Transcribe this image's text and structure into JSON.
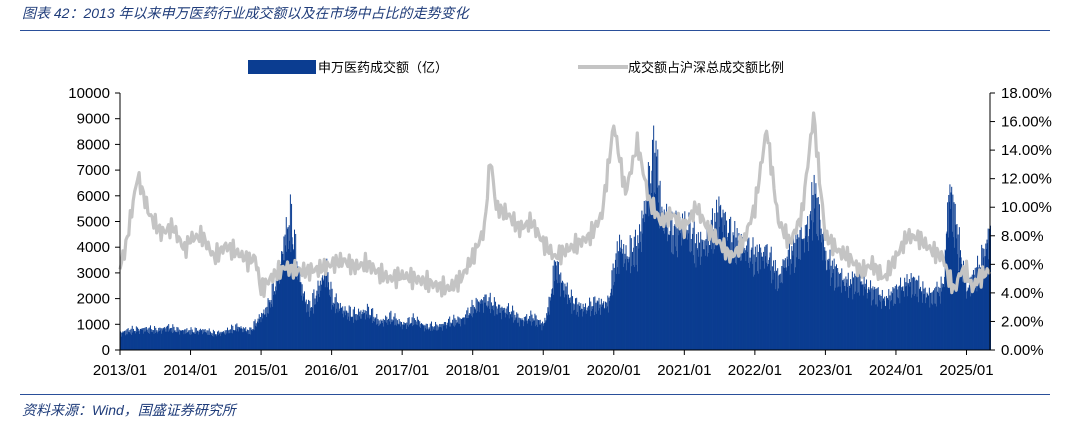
{
  "header": {
    "title": "图表 42：2013 年以来申万医药行业成交额以及在市场中占比的走势变化"
  },
  "footer": {
    "source": "资料来源：Wind，国盛证券研究所"
  },
  "colors": {
    "bar": "#0b3d91",
    "line": "#c4c4c4",
    "rule": "#2a4f9a"
  },
  "chart_data": {
    "type": "bar",
    "title": "",
    "x_tick_labels": [
      "2013/01",
      "2014/01",
      "2015/01",
      "2016/01",
      "2017/01",
      "2018/01",
      "2019/01",
      "2020/01",
      "2021/01",
      "2022/01",
      "2023/01",
      "2024/01",
      "2025/01"
    ],
    "y_left": {
      "min": 0,
      "max": 10000,
      "step": 1000,
      "tick_labels": [
        "0",
        "1000",
        "2000",
        "3000",
        "4000",
        "5000",
        "6000",
        "7000",
        "8000",
        "9000",
        "10000"
      ]
    },
    "y_right": {
      "min": 0,
      "max": 18,
      "step": 2,
      "tick_labels": [
        "0.00%",
        "2.00%",
        "4.00%",
        "6.00%",
        "8.00%",
        "10.00%",
        "12.00%",
        "14.00%",
        "16.00%",
        "18.00%"
      ]
    },
    "legend": {
      "position": "top-center"
    },
    "x_range": [
      "2013-01",
      "2025-05"
    ],
    "series": [
      {
        "name": "申万医药成交额（亿）",
        "type": "bar",
        "axis": "left",
        "points": [
          [
            "2013-01",
            750
          ],
          [
            "2013-03",
            850
          ],
          [
            "2013-05",
            900
          ],
          [
            "2013-07",
            850
          ],
          [
            "2013-09",
            950
          ],
          [
            "2013-11",
            850
          ],
          [
            "2014-01",
            800
          ],
          [
            "2014-03",
            850
          ],
          [
            "2014-05",
            700
          ],
          [
            "2014-07",
            800
          ],
          [
            "2014-09",
            1000
          ],
          [
            "2014-11",
            800
          ],
          [
            "2015-01",
            1500
          ],
          [
            "2015-02",
            1800
          ],
          [
            "2015-03",
            2500
          ],
          [
            "2015-04",
            3500
          ],
          [
            "2015-05",
            4800
          ],
          [
            "2015-06",
            5600
          ],
          [
            "2015-07",
            3800
          ],
          [
            "2015-08",
            2500
          ],
          [
            "2015-09",
            1800
          ],
          [
            "2015-10",
            2200
          ],
          [
            "2015-11",
            2800
          ],
          [
            "2015-12",
            3500
          ],
          [
            "2016-01",
            2200
          ],
          [
            "2016-03",
            1700
          ],
          [
            "2016-05",
            1500
          ],
          [
            "2016-07",
            1700
          ],
          [
            "2016-09",
            1200
          ],
          [
            "2016-11",
            1400
          ],
          [
            "2017-01",
            1100
          ],
          [
            "2017-03",
            1300
          ],
          [
            "2017-05",
            1000
          ],
          [
            "2017-07",
            1000
          ],
          [
            "2017-09",
            1200
          ],
          [
            "2017-11",
            1300
          ],
          [
            "2018-01",
            1800
          ],
          [
            "2018-03",
            2200
          ],
          [
            "2018-05",
            1800
          ],
          [
            "2018-07",
            1700
          ],
          [
            "2018-09",
            1300
          ],
          [
            "2018-11",
            1400
          ],
          [
            "2019-01",
            1100
          ],
          [
            "2019-02",
            2000
          ],
          [
            "2019-03",
            3700
          ],
          [
            "2019-04",
            3000
          ],
          [
            "2019-06",
            2000
          ],
          [
            "2019-08",
            1800
          ],
          [
            "2019-10",
            2000
          ],
          [
            "2019-12",
            2000
          ],
          [
            "2020-01",
            3500
          ],
          [
            "2020-02",
            4600
          ],
          [
            "2020-03",
            4000
          ],
          [
            "2020-05",
            4500
          ],
          [
            "2020-07",
            7200
          ],
          [
            "2020-08",
            8600
          ],
          [
            "2020-09",
            6000
          ],
          [
            "2020-11",
            5000
          ],
          [
            "2021-01",
            5500
          ],
          [
            "2021-03",
            4500
          ],
          [
            "2021-05",
            4700
          ],
          [
            "2021-07",
            6000
          ],
          [
            "2021-09",
            4800
          ],
          [
            "2021-11",
            4500
          ],
          [
            "2022-01",
            4000
          ],
          [
            "2022-03",
            4200
          ],
          [
            "2022-05",
            3000
          ],
          [
            "2022-06",
            3800
          ],
          [
            "2022-08",
            4500
          ],
          [
            "2022-10",
            5200
          ],
          [
            "2022-11",
            6800
          ],
          [
            "2022-12",
            5500
          ],
          [
            "2023-01",
            4000
          ],
          [
            "2023-03",
            3200
          ],
          [
            "2023-05",
            2900
          ],
          [
            "2023-07",
            3000
          ],
          [
            "2023-09",
            2500
          ],
          [
            "2023-11",
            2200
          ],
          [
            "2024-01",
            2500
          ],
          [
            "2024-03",
            3000
          ],
          [
            "2024-05",
            2700
          ],
          [
            "2024-07",
            2300
          ],
          [
            "2024-09",
            2800
          ],
          [
            "2024-10",
            7000
          ],
          [
            "2024-11",
            5500
          ],
          [
            "2024-12",
            4000
          ],
          [
            "2025-01",
            2600
          ],
          [
            "2025-03",
            3500
          ],
          [
            "2025-05",
            5100
          ]
        ]
      },
      {
        "name": "成交额占沪深总成交额比例",
        "type": "line",
        "axis": "right",
        "points": [
          [
            "2013-01",
            5.8
          ],
          [
            "2013-02",
            7.3
          ],
          [
            "2013-04",
            12.2
          ],
          [
            "2013-06",
            9.5
          ],
          [
            "2013-08",
            8.2
          ],
          [
            "2013-10",
            8.6
          ],
          [
            "2013-12",
            7.0
          ],
          [
            "2014-01",
            7.8
          ],
          [
            "2014-03",
            8.0
          ],
          [
            "2014-05",
            6.5
          ],
          [
            "2014-07",
            7.3
          ],
          [
            "2014-09",
            6.8
          ],
          [
            "2014-11",
            6.2
          ],
          [
            "2014-12",
            6.5
          ],
          [
            "2015-01",
            4.2
          ],
          [
            "2015-03",
            5.2
          ],
          [
            "2015-05",
            5.8
          ],
          [
            "2015-07",
            5.6
          ],
          [
            "2015-09",
            5.5
          ],
          [
            "2015-11",
            5.7
          ],
          [
            "2016-01",
            6.0
          ],
          [
            "2016-03",
            6.3
          ],
          [
            "2016-05",
            5.8
          ],
          [
            "2016-07",
            6.1
          ],
          [
            "2016-09",
            5.4
          ],
          [
            "2016-11",
            5.0
          ],
          [
            "2017-01",
            5.2
          ],
          [
            "2017-03",
            5.0
          ],
          [
            "2017-05",
            4.8
          ],
          [
            "2017-07",
            4.5
          ],
          [
            "2017-09",
            4.3
          ],
          [
            "2017-11",
            5.0
          ],
          [
            "2018-01",
            6.5
          ],
          [
            "2018-03",
            8.5
          ],
          [
            "2018-04",
            13.5
          ],
          [
            "2018-05",
            10.0
          ],
          [
            "2018-07",
            9.5
          ],
          [
            "2018-09",
            8.5
          ],
          [
            "2018-11",
            9.0
          ],
          [
            "2019-01",
            7.5
          ],
          [
            "2019-03",
            6.5
          ],
          [
            "2019-05",
            7.0
          ],
          [
            "2019-07",
            7.5
          ],
          [
            "2019-09",
            8.0
          ],
          [
            "2019-11",
            9.5
          ],
          [
            "2020-01",
            15.8
          ],
          [
            "2020-03",
            11.0
          ],
          [
            "2020-05",
            14.5
          ],
          [
            "2020-07",
            10.5
          ],
          [
            "2020-09",
            9.0
          ],
          [
            "2020-11",
            9.5
          ],
          [
            "2021-01",
            8.5
          ],
          [
            "2021-03",
            10.0
          ],
          [
            "2021-05",
            8.5
          ],
          [
            "2021-07",
            7.5
          ],
          [
            "2021-09",
            6.5
          ],
          [
            "2021-11",
            7.5
          ],
          [
            "2022-01",
            10.0
          ],
          [
            "2022-03",
            15.5
          ],
          [
            "2022-05",
            9.0
          ],
          [
            "2022-07",
            7.5
          ],
          [
            "2022-09",
            9.5
          ],
          [
            "2022-11",
            16.5
          ],
          [
            "2022-12",
            12.0
          ],
          [
            "2023-01",
            8.0
          ],
          [
            "2023-03",
            7.0
          ],
          [
            "2023-05",
            6.5
          ],
          [
            "2023-07",
            5.5
          ],
          [
            "2023-09",
            6.0
          ],
          [
            "2023-11",
            5.0
          ],
          [
            "2024-01",
            6.5
          ],
          [
            "2024-03",
            8.0
          ],
          [
            "2024-05",
            7.8
          ],
          [
            "2024-07",
            7.0
          ],
          [
            "2024-09",
            6.5
          ],
          [
            "2024-10",
            5.0
          ],
          [
            "2024-11",
            4.2
          ],
          [
            "2024-12",
            5.5
          ],
          [
            "2025-01",
            5.5
          ],
          [
            "2025-02",
            4.3
          ],
          [
            "2025-03",
            5.0
          ],
          [
            "2025-05",
            5.6
          ]
        ]
      }
    ]
  }
}
